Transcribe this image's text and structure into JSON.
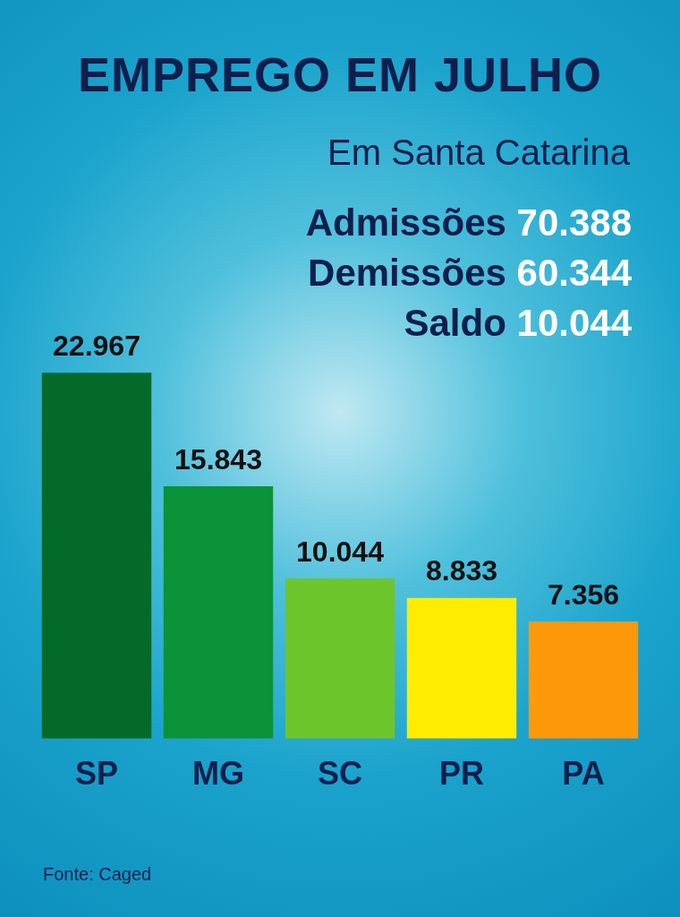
{
  "chart_data": {
    "type": "bar",
    "title": "EMPREGO EM JULHO",
    "subtitle": "Em Santa Catarina",
    "categories": [
      "SP",
      "MG",
      "SC",
      "PR",
      "PA"
    ],
    "values": [
      22967,
      15843,
      10044,
      8833,
      7356
    ],
    "colors": [
      "#046a29",
      "#0a9338",
      "#6dc52c",
      "#ffec00",
      "#fe980b"
    ],
    "value_labels": [
      "22.967",
      "15.843",
      "10.044",
      "8.833",
      "7.356"
    ],
    "annotations": [
      "Admissões 70.388",
      "Demissões 60.344",
      "Saldo 10.044",
      "Fonte: Caged"
    ],
    "grid": false,
    "legend": false
  }
}
